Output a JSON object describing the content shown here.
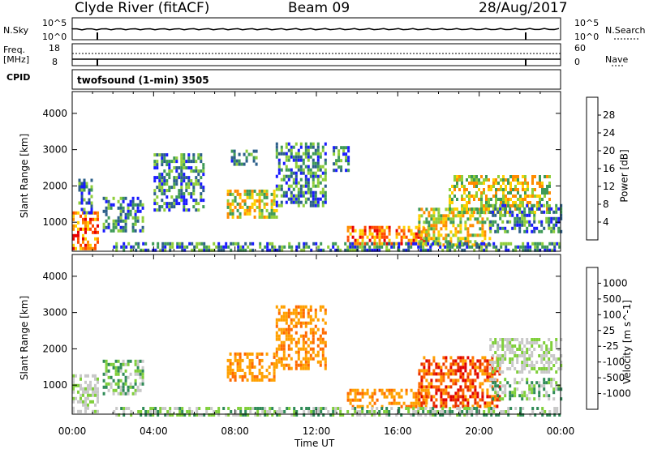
{
  "header": {
    "station": "Clyde River (fitACF)",
    "beam": "Beam 09",
    "date": "28/Aug/2017"
  },
  "strip_panels": {
    "nsky_label": "N.Sky",
    "nsky_ticks": [
      "10^5",
      "10^0"
    ],
    "nsearch_label": "N.Search",
    "nsearch_ticks": [
      "10^5",
      "10^0"
    ],
    "freq_label": "Freq.",
    "freq_unit": "[MHz]",
    "freq_ticks": [
      "18",
      "8"
    ],
    "nave_label": "Nave",
    "nave_ticks": [
      "60",
      "0"
    ],
    "cpid_label": "CPID",
    "cpid_text": "twofsound (1-min) 3505"
  },
  "chart_data": [
    {
      "type": "heatmap",
      "name": "power",
      "ylabel": "Slant Range [km]",
      "xlim_hours": [
        0,
        24
      ],
      "ylim_km": [
        200,
        4600
      ],
      "yticks": [
        "1000",
        "2000",
        "3000",
        "4000"
      ],
      "colorbar": {
        "label": "Power [dB]",
        "ticks": [
          "28",
          "24",
          "20",
          "16",
          "12",
          "8",
          "4"
        ],
        "colors": [
          "#e80000",
          "#ff4a00",
          "#ff8c00",
          "#ffd000",
          "#8fce3a",
          "#3e9a57",
          "#2c5f8a",
          "#1a1aff"
        ]
      },
      "regions": [
        {
          "t0": 0.0,
          "t1": 1.3,
          "r0": 250,
          "r1": 1300,
          "level": "high"
        },
        {
          "t0": 0.3,
          "t1": 1.0,
          "r0": 1300,
          "r1": 2200,
          "level": "low"
        },
        {
          "t0": 1.5,
          "t1": 3.5,
          "r0": 800,
          "r1": 1700,
          "level": "low"
        },
        {
          "t0": 4.0,
          "t1": 6.5,
          "r0": 1300,
          "r1": 2900,
          "level": "low"
        },
        {
          "t0": 7.6,
          "t1": 10.0,
          "r0": 1100,
          "r1": 1900,
          "level": "med"
        },
        {
          "t0": 7.8,
          "t1": 9.0,
          "r0": 2600,
          "r1": 3000,
          "level": "low"
        },
        {
          "t0": 10.0,
          "t1": 12.5,
          "r0": 1500,
          "r1": 3200,
          "level": "low"
        },
        {
          "t0": 12.8,
          "t1": 13.6,
          "r0": 2400,
          "r1": 3100,
          "level": "low"
        },
        {
          "t0": 13.5,
          "t1": 17.5,
          "r0": 400,
          "r1": 900,
          "level": "high"
        },
        {
          "t0": 17.0,
          "t1": 20.5,
          "r0": 400,
          "r1": 1400,
          "level": "med"
        },
        {
          "t0": 18.5,
          "t1": 23.5,
          "r0": 1300,
          "r1": 2300,
          "level": "med"
        },
        {
          "t0": 20.5,
          "t1": 24.0,
          "r0": 700,
          "r1": 1500,
          "level": "low"
        },
        {
          "t0": 2.0,
          "t1": 24.0,
          "r0": 220,
          "r1": 450,
          "level": "low"
        }
      ]
    },
    {
      "type": "heatmap",
      "name": "velocity",
      "ylabel": "Slant Range [km]",
      "xlabel": "Time UT",
      "xlim_hours": [
        0,
        24
      ],
      "ylim_km": [
        200,
        4600
      ],
      "xticks": [
        "00:00",
        "04:00",
        "08:00",
        "12:00",
        "16:00",
        "20:00",
        "00:00"
      ],
      "yticks": [
        "1000",
        "2000",
        "3000",
        "4000"
      ],
      "colorbar": {
        "label": "Velocity [m s^-1]",
        "ticks": [
          "1000",
          "500",
          "100",
          "25",
          "-25",
          "-100",
          "-500",
          "-1000"
        ],
        "colors": [
          "#1c3f9a",
          "#2e6fb0",
          "#2f8b57",
          "#7fcf3a",
          "#c8c8c8",
          "#ffa000",
          "#ff6a00",
          "#e83000",
          "#e00000"
        ]
      },
      "regions": [
        {
          "t0": 0.0,
          "t1": 1.3,
          "r0": 250,
          "r1": 1300,
          "level": "gray"
        },
        {
          "t0": 1.5,
          "t1": 3.5,
          "r0": 800,
          "r1": 1700,
          "level": "green"
        },
        {
          "t0": 7.6,
          "t1": 10.0,
          "r0": 1100,
          "r1": 1900,
          "level": "orange"
        },
        {
          "t0": 10.0,
          "t1": 12.5,
          "r0": 1500,
          "r1": 3200,
          "level": "orange"
        },
        {
          "t0": 13.5,
          "t1": 17.5,
          "r0": 400,
          "r1": 900,
          "level": "orange"
        },
        {
          "t0": 17.0,
          "t1": 21.0,
          "r0": 400,
          "r1": 1800,
          "level": "red"
        },
        {
          "t0": 20.5,
          "t1": 24.0,
          "r0": 1400,
          "r1": 2300,
          "level": "gray"
        },
        {
          "t0": 20.5,
          "t1": 24.0,
          "r0": 600,
          "r1": 1200,
          "level": "green"
        },
        {
          "t0": 2.0,
          "t1": 24.0,
          "r0": 220,
          "r1": 400,
          "level": "green"
        }
      ]
    }
  ]
}
